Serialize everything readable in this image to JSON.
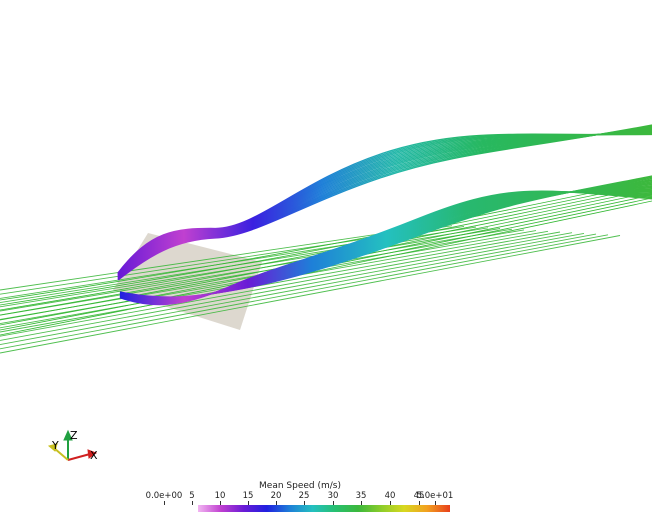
{
  "viewer": {
    "scalar_name": "Mean Speed (m/s)",
    "range_min": 0,
    "range_max": 50,
    "background": "#ffffff",
    "plate_color": "#d7d1c7",
    "colormap": [
      "#f2b6f2",
      "#c040d0",
      "#6a1bd6",
      "#2020e0",
      "#1e7fd8",
      "#24c0c0",
      "#27c070",
      "#3cb83c",
      "#8ccd2a",
      "#d8d820",
      "#f2a020",
      "#e8401c"
    ]
  },
  "orientation_axes": {
    "x_label": "X",
    "y_label": "Y",
    "z_label": "Z",
    "x_color": "#d02020",
    "y_color": "#c8c020",
    "z_color": "#20a040"
  },
  "colorbar": {
    "title": "Mean Speed (m/s)",
    "tick_labels": [
      "0.0e+00",
      "5",
      "10",
      "15",
      "20",
      "25",
      "30",
      "35",
      "40",
      "45",
      "5.0e+01"
    ],
    "tick_values": [
      0,
      5,
      10,
      15,
      20,
      25,
      30,
      35,
      40,
      45,
      50
    ]
  }
}
